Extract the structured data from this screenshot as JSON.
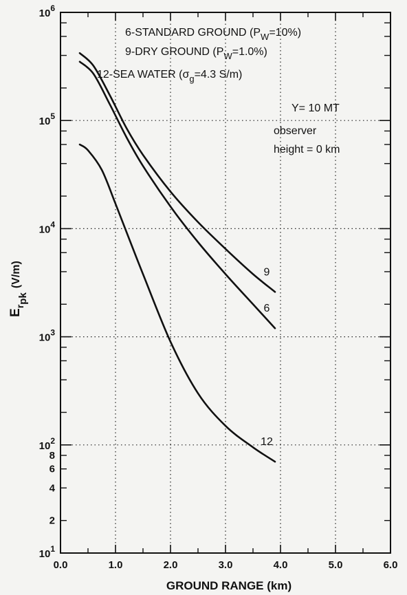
{
  "chart_data": {
    "type": "line",
    "xlabel": "GROUND RANGE (km)",
    "ylabel_main": "E",
    "ylabel_sub": "r",
    "ylabel_subsub": "pk",
    "ylabel_unit": "(V/m)",
    "xlim": [
      0,
      6
    ],
    "ylim": [
      10,
      1000000
    ],
    "y_scale": "log",
    "grid": "dotted",
    "x_ticks": [
      {
        "v": 0,
        "label": "0.0"
      },
      {
        "v": 1,
        "label": "1.0"
      },
      {
        "v": 2,
        "label": "2.0"
      },
      {
        "v": 3,
        "label": "3.0"
      },
      {
        "v": 4,
        "label": "4.0"
      },
      {
        "v": 5,
        "label": "5.0"
      },
      {
        "v": 6,
        "label": "6.0"
      }
    ],
    "y_major_ticks": [
      {
        "v": 10,
        "base": "10",
        "exp": "1"
      },
      {
        "v": 100,
        "base": "10",
        "exp": "2"
      },
      {
        "v": 1000,
        "base": "10",
        "exp": "3"
      },
      {
        "v": 10000,
        "base": "10",
        "exp": "4"
      },
      {
        "v": 100000,
        "base": "10",
        "exp": "5"
      },
      {
        "v": 1000000,
        "base": "10",
        "exp": "6"
      }
    ],
    "y_minor_labels": [
      {
        "v": 20,
        "label": "2"
      },
      {
        "v": 40,
        "label": "4"
      },
      {
        "v": 60,
        "label": "6"
      },
      {
        "v": 80,
        "label": "8"
      }
    ],
    "legend": [
      {
        "prefix": "6-STANDARD GROUND (P",
        "sub": "W",
        "suffix": "=10%)"
      },
      {
        "prefix": "9-DRY GROUND (P",
        "sub": "W",
        "suffix": "=1.0%)"
      },
      {
        "prefix": "12-SEA WATER (σ",
        "sub": "g",
        "suffix": "=4.3 S/m)"
      }
    ],
    "annotations": [
      "Y= 10 MT",
      "observer",
      "height = 0 km"
    ],
    "series": [
      {
        "name": "9",
        "x": [
          0.35,
          0.6,
          0.9,
          1.2,
          1.5,
          2.0,
          2.5,
          3.0,
          3.5,
          3.9
        ],
        "y": [
          420000,
          320000,
          170000,
          85000,
          48000,
          22000,
          11500,
          6500,
          3800,
          2600
        ]
      },
      {
        "name": "6",
        "x": [
          0.35,
          0.6,
          0.9,
          1.2,
          1.5,
          2.0,
          2.5,
          3.0,
          3.5,
          3.9
        ],
        "y": [
          350000,
          270000,
          140000,
          70000,
          38000,
          16000,
          7500,
          3800,
          2000,
          1200
        ]
      },
      {
        "name": "12",
        "x": [
          0.35,
          0.5,
          0.75,
          1.0,
          1.25,
          1.5,
          2.0,
          2.5,
          3.0,
          3.5,
          3.9
        ],
        "y": [
          60000,
          53000,
          35000,
          17000,
          8000,
          3800,
          900,
          300,
          150,
          95,
          70
        ]
      }
    ]
  }
}
